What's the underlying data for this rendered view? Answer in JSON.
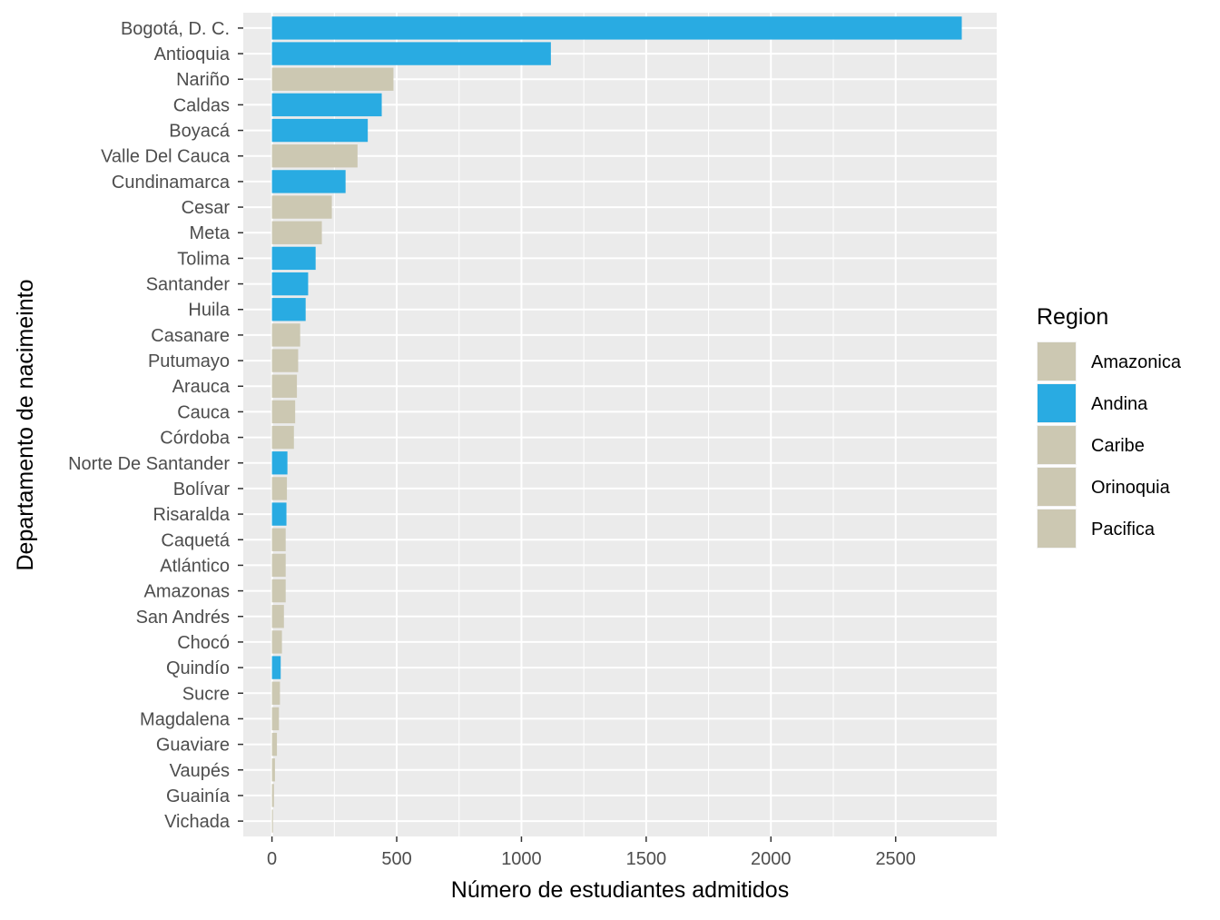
{
  "chart_data": {
    "type": "bar",
    "orientation": "horizontal",
    "title": "",
    "xlabel": "Número de estudiantes admitidos",
    "ylabel": "Departamento de nacimeinto",
    "xlim": [
      -115,
      2905
    ],
    "xticks": [
      0,
      500,
      1000,
      1500,
      2000,
      2500
    ],
    "grid": true,
    "legend": {
      "title": "Region",
      "position": "right",
      "entries": [
        {
          "name": "Amazonica",
          "color": "#CCC8B2"
        },
        {
          "name": "Andina",
          "color": "#29ABE2"
        },
        {
          "name": "Caribe",
          "color": "#CCC8B2"
        },
        {
          "name": "Orinoquia",
          "color": "#CCC8B2"
        },
        {
          "name": "Pacifica",
          "color": "#CCC8B2"
        }
      ]
    },
    "colors": {
      "Andina": "#29ABE2",
      "other": "#CCC8B2",
      "panel": "#EBEBEB",
      "grid": "#FFFFFF"
    },
    "bars": [
      {
        "category": "Bogotá, D. C.",
        "value": 2765,
        "region_color": "Andina"
      },
      {
        "category": "Antioquia",
        "value": 1118,
        "region_color": "Andina"
      },
      {
        "category": "Nariño",
        "value": 487,
        "region_color": "other"
      },
      {
        "category": "Caldas",
        "value": 440,
        "region_color": "Andina"
      },
      {
        "category": "Boyacá",
        "value": 384,
        "region_color": "Andina"
      },
      {
        "category": "Valle Del Cauca",
        "value": 343,
        "region_color": "other"
      },
      {
        "category": "Cundinamarca",
        "value": 295,
        "region_color": "Andina"
      },
      {
        "category": "Cesar",
        "value": 240,
        "region_color": "other"
      },
      {
        "category": "Meta",
        "value": 200,
        "region_color": "other"
      },
      {
        "category": "Tolima",
        "value": 175,
        "region_color": "Andina"
      },
      {
        "category": "Santander",
        "value": 145,
        "region_color": "Andina"
      },
      {
        "category": "Huila",
        "value": 135,
        "region_color": "Andina"
      },
      {
        "category": "Casanare",
        "value": 113,
        "region_color": "other"
      },
      {
        "category": "Putumayo",
        "value": 105,
        "region_color": "other"
      },
      {
        "category": "Arauca",
        "value": 100,
        "region_color": "other"
      },
      {
        "category": "Cauca",
        "value": 93,
        "region_color": "other"
      },
      {
        "category": "Córdoba",
        "value": 88,
        "region_color": "other"
      },
      {
        "category": "Norte De Santander",
        "value": 62,
        "region_color": "Andina"
      },
      {
        "category": "Bolívar",
        "value": 60,
        "region_color": "other"
      },
      {
        "category": "Risaralda",
        "value": 58,
        "region_color": "Andina"
      },
      {
        "category": "Caquetá",
        "value": 55,
        "region_color": "other"
      },
      {
        "category": "Atlántico",
        "value": 55,
        "region_color": "other"
      },
      {
        "category": "Amazonas",
        "value": 55,
        "region_color": "other"
      },
      {
        "category": "San Andrés",
        "value": 48,
        "region_color": "other"
      },
      {
        "category": "Chocó",
        "value": 40,
        "region_color": "other"
      },
      {
        "category": "Quindío",
        "value": 35,
        "region_color": "Andina"
      },
      {
        "category": "Sucre",
        "value": 32,
        "region_color": "other"
      },
      {
        "category": "Magdalena",
        "value": 28,
        "region_color": "other"
      },
      {
        "category": "Guaviare",
        "value": 20,
        "region_color": "other"
      },
      {
        "category": "Vaupés",
        "value": 12,
        "region_color": "other"
      },
      {
        "category": "Guainía",
        "value": 8,
        "region_color": "other"
      },
      {
        "category": "Vichada",
        "value": 4,
        "region_color": "other"
      }
    ]
  }
}
